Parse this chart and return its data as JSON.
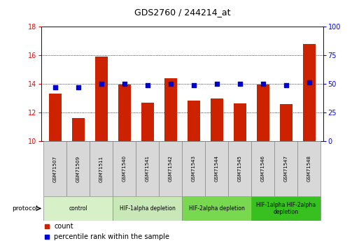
{
  "title": "GDS2760 / 244214_at",
  "samples": [
    "GSM71507",
    "GSM71509",
    "GSM71511",
    "GSM71540",
    "GSM71541",
    "GSM71542",
    "GSM71543",
    "GSM71544",
    "GSM71545",
    "GSM71546",
    "GSM71547",
    "GSM71548"
  ],
  "counts": [
    13.3,
    11.6,
    15.9,
    13.95,
    12.7,
    14.4,
    12.8,
    12.95,
    12.65,
    13.95,
    12.6,
    16.8
  ],
  "percentile_ranks": [
    47,
    47,
    50,
    50,
    49,
    50,
    49,
    50,
    50,
    50,
    49,
    51
  ],
  "ylim_left": [
    10,
    18
  ],
  "ylim_right": [
    0,
    100
  ],
  "yticks_left": [
    10,
    12,
    14,
    16,
    18
  ],
  "yticks_right": [
    0,
    25,
    50,
    75,
    100
  ],
  "bar_color": "#cc2200",
  "dot_color": "#0000cc",
  "protocol_groups": [
    {
      "label": "control",
      "start": 0,
      "end": 3,
      "color": "#d8f0c8"
    },
    {
      "label": "HIF-1alpha depletion",
      "start": 3,
      "end": 6,
      "color": "#c8e8b8"
    },
    {
      "label": "HIF-2alpha depletion",
      "start": 6,
      "end": 9,
      "color": "#78d850"
    },
    {
      "label": "HIF-1alpha HIF-2alpha\ndepletion",
      "start": 9,
      "end": 12,
      "color": "#38c020"
    }
  ],
  "legend_count_color": "#cc2200",
  "legend_pct_color": "#0000cc"
}
